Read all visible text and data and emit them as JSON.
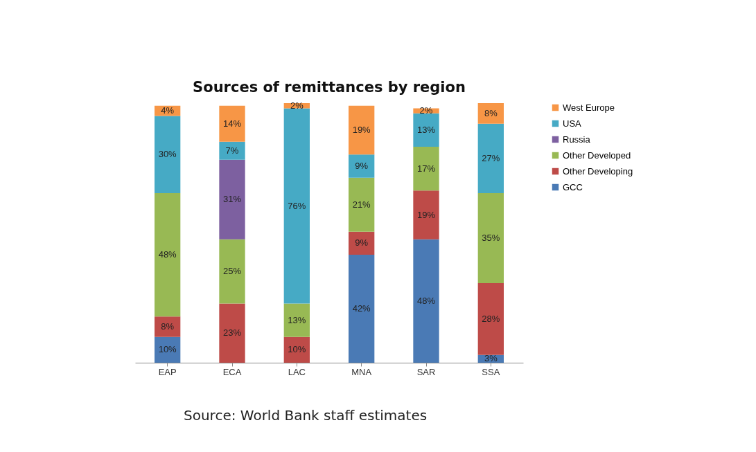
{
  "chart_data": {
    "type": "bar",
    "title": "Sources of remittances by region",
    "stacked": true,
    "legend": "right",
    "grid": false,
    "categories": [
      "EAP",
      "ECA",
      "LAC",
      "MNA",
      "SAR",
      "SSA"
    ],
    "series": [
      {
        "name": "GCC",
        "color": "#4a7ab5",
        "values": [
          10,
          null,
          null,
          42,
          48,
          3
        ],
        "value_labels": [
          "10%",
          null,
          null,
          "42%",
          "48%",
          "3%"
        ]
      },
      {
        "name": "Other Developing",
        "color": "#be4b48",
        "values": [
          8,
          23,
          10,
          9,
          19,
          28
        ],
        "value_labels": [
          "8%",
          "23%",
          "10%",
          "9%",
          "19%",
          "28%"
        ]
      },
      {
        "name": "Other Developed",
        "color": "#98b954",
        "values": [
          48,
          25,
          13,
          21,
          17,
          35
        ],
        "value_labels": [
          "48%",
          "25%",
          "13%",
          "21%",
          "17%",
          "35%"
        ]
      },
      {
        "name": "Russia",
        "color": "#7d60a0",
        "values": [
          null,
          31,
          null,
          null,
          null,
          null
        ],
        "value_labels": [
          null,
          "31%",
          null,
          null,
          null,
          null
        ]
      },
      {
        "name": "USA",
        "color": "#46aac5",
        "values": [
          30,
          7,
          76,
          9,
          13,
          27
        ],
        "value_labels": [
          "30%",
          "7%",
          "76%",
          "9%",
          "13%",
          "27%"
        ]
      },
      {
        "name": "West Europe",
        "color": "#f79646",
        "values": [
          4,
          14,
          2,
          19,
          2,
          8
        ],
        "value_labels": [
          "4%",
          "14%",
          "2%",
          "19%",
          "2%",
          "8%"
        ]
      }
    ],
    "annotations": [
      "Source: World Bank staff estimates"
    ]
  }
}
